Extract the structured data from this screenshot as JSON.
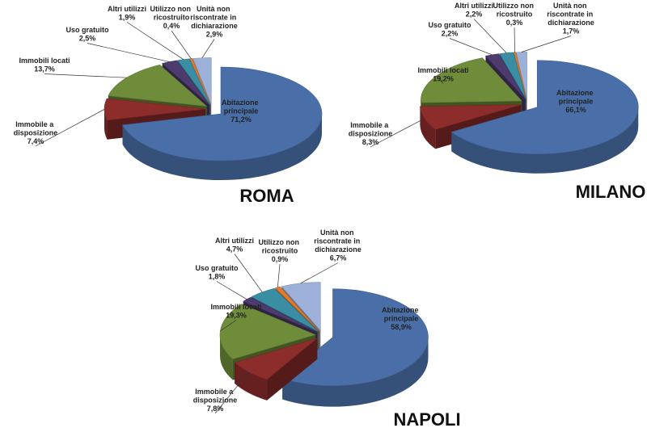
{
  "chart_data": [
    {
      "type": "pie",
      "title": "ROMA",
      "categories": [
        "Abitazione principale",
        "Immobile a disposizione",
        "Immobili locati",
        "Uso gratuito",
        "Altri utilizzi",
        "Utilizzo non ricostruito",
        "Unità non riscontrate in dichiarazione"
      ],
      "values": [
        71.2,
        7.4,
        13.7,
        2.5,
        1.9,
        0.4,
        2.9
      ],
      "value_labels": [
        "71,2%",
        "7,4%",
        "13,7%",
        "2,5%",
        "1,9%",
        "0,4%",
        "2,9%"
      ],
      "colors": [
        "#4a6fa8",
        "#8c2d2b",
        "#6f8c3b",
        "#4d3b6e",
        "#3a8ea3",
        "#e07a2c",
        "#9db0d8"
      ]
    },
    {
      "type": "pie",
      "title": "MILANO",
      "categories": [
        "Abitazione principale",
        "Immobile a disposizione",
        "Immobili locati",
        "Uso gratuito",
        "Altri utilizzi",
        "Utilizzo non ricostruito",
        "Unità non riscontrate in dichiarazione"
      ],
      "values": [
        66.1,
        8.3,
        19.2,
        2.2,
        2.2,
        0.3,
        1.7
      ],
      "value_labels": [
        "66,1%",
        "8,3%",
        "19,2%",
        "2,2%",
        "2,2%",
        "0,3%",
        "1,7%"
      ],
      "colors": [
        "#4a6fa8",
        "#8c2d2b",
        "#6f8c3b",
        "#4d3b6e",
        "#3a8ea3",
        "#e07a2c",
        "#9db0d8"
      ]
    },
    {
      "type": "pie",
      "title": "NAPOLI",
      "categories": [
        "Abitazione principale",
        "Immobile a disposizione",
        "Immobili locati",
        "Uso gratuito",
        "Altri utilizzi",
        "Utilizzo non ricostruito",
        "Unità non riscontrate in dichiarazione"
      ],
      "values": [
        58.9,
        7.8,
        19.3,
        1.8,
        4.7,
        0.9,
        6.7
      ],
      "value_labels": [
        "58,9%",
        "7,8%",
        "19,3%",
        "1,8%",
        "4,7%",
        "0,9%",
        "6,7%"
      ],
      "colors": [
        "#4a6fa8",
        "#8c2d2b",
        "#6f8c3b",
        "#4d3b6e",
        "#3a8ea3",
        "#e07a2c",
        "#9db0d8"
      ]
    }
  ]
}
